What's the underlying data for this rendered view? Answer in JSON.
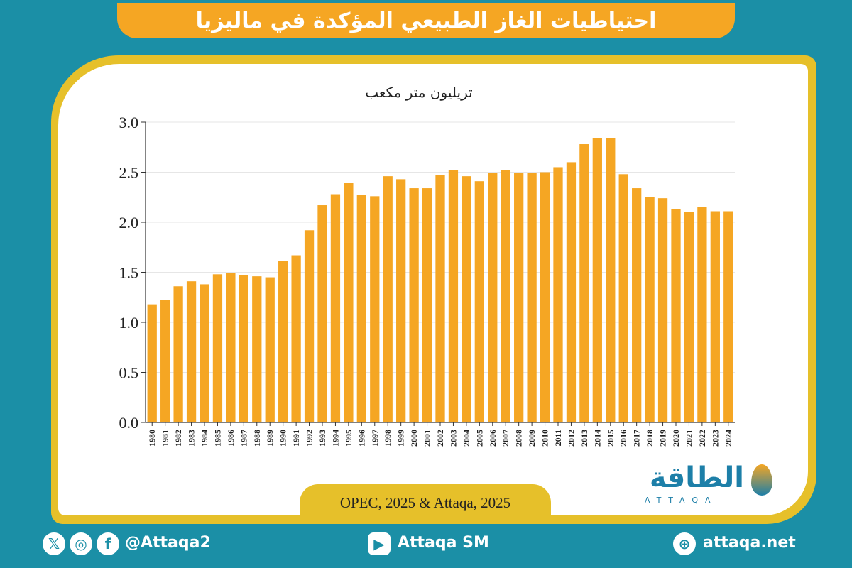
{
  "header": {
    "title": "احتياطيات الغاز الطبيعي المؤكدة في ماليزيا"
  },
  "colors": {
    "bar": "#f5a623",
    "background": "#1b8fa6",
    "frame": "#e6c02a",
    "accent": "#1d7fa8"
  },
  "chart_data": {
    "type": "bar",
    "title": "احتياطيات الغاز الطبيعي المؤكدة في ماليزيا",
    "ylabel": "تريليون متر مكعب",
    "xlabel": "",
    "ylim": [
      0,
      3.0
    ],
    "yticks": [
      "0.0",
      "0.5",
      "1.0",
      "1.5",
      "2.0",
      "2.5",
      "3.0"
    ],
    "grid": true,
    "categories": [
      "1980",
      "1981",
      "1982",
      "1983",
      "1984",
      "1985",
      "1986",
      "1987",
      "1988",
      "1989",
      "1990",
      "1991",
      "1992",
      "1993",
      "1994",
      "1995",
      "1996",
      "1997",
      "1998",
      "1999",
      "2000",
      "2001",
      "2002",
      "2003",
      "2004",
      "2005",
      "2006",
      "2007",
      "2008",
      "2009",
      "2010",
      "2011",
      "2012",
      "2013",
      "2014",
      "2015",
      "2016",
      "2017",
      "2018",
      "2019",
      "2020",
      "2021",
      "2022",
      "2023",
      "2024"
    ],
    "values": [
      1.18,
      1.22,
      1.36,
      1.41,
      1.38,
      1.48,
      1.49,
      1.47,
      1.46,
      1.45,
      1.61,
      1.67,
      1.92,
      2.17,
      2.28,
      2.39,
      2.27,
      2.26,
      2.46,
      2.43,
      2.34,
      2.34,
      2.47,
      2.52,
      2.46,
      2.41,
      2.49,
      2.52,
      2.49,
      2.49,
      2.5,
      2.55,
      2.6,
      2.78,
      2.84,
      2.84,
      2.48,
      2.34,
      2.25,
      2.24,
      2.13,
      2.1,
      2.15,
      2.11,
      2.11
    ]
  },
  "source": {
    "text": "OPEC, 2025 & Attaqa, 2025"
  },
  "logo": {
    "arabic": "الطاقة",
    "latin": "ATTAQA"
  },
  "footer": {
    "social_handle": "@Attaqa2",
    "youtube": "Attaqa SM",
    "website": "attaqa.net",
    "icons": [
      "x-icon",
      "instagram-icon",
      "facebook-icon",
      "youtube-icon",
      "globe-icon"
    ]
  }
}
